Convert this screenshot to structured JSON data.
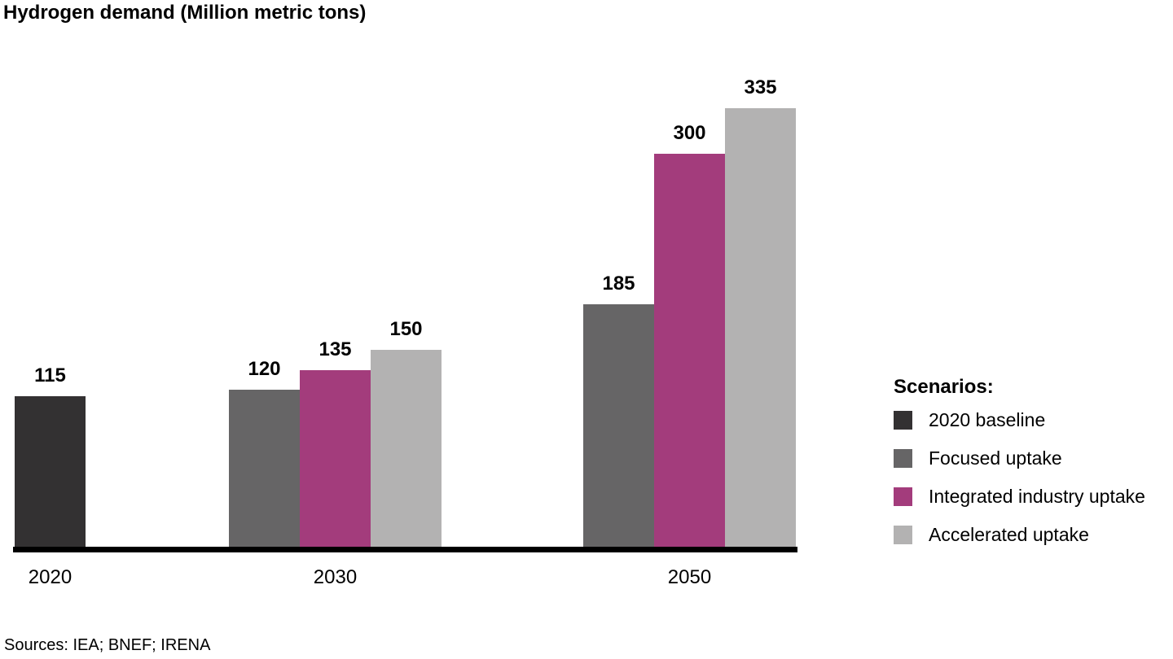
{
  "title": "Hydrogen demand (Million metric tons)",
  "source_note": "Sources: IEA; BNEF; IRENA",
  "legend": {
    "heading": "Scenarios:",
    "items": [
      {
        "label": "2020 baseline",
        "color": "#333132"
      },
      {
        "label": "Focused uptake",
        "color": "#666566"
      },
      {
        "label": "Integrated industry uptake",
        "color": "#a33c7c"
      },
      {
        "label": "Accelerated uptake",
        "color": "#b3b2b2"
      }
    ]
  },
  "chart_data": {
    "type": "bar",
    "title": "Hydrogen demand (Million metric tons)",
    "unit": "Million metric tons",
    "categories": [
      "2020",
      "2030",
      "2050"
    ],
    "series": [
      {
        "name": "2020 baseline",
        "color": "#333132",
        "values": [
          115,
          null,
          null
        ]
      },
      {
        "name": "Focused uptake",
        "color": "#666566",
        "values": [
          null,
          120,
          185
        ]
      },
      {
        "name": "Integrated industry uptake",
        "color": "#a33c7c",
        "values": [
          null,
          135,
          300
        ]
      },
      {
        "name": "Accelerated uptake",
        "color": "#b3b2b2",
        "values": [
          null,
          150,
          335
        ]
      }
    ],
    "data_labels": true,
    "grid": false,
    "axis_line_color": "#000000",
    "legend_position": "right",
    "ylim": [
      0,
      350
    ]
  }
}
